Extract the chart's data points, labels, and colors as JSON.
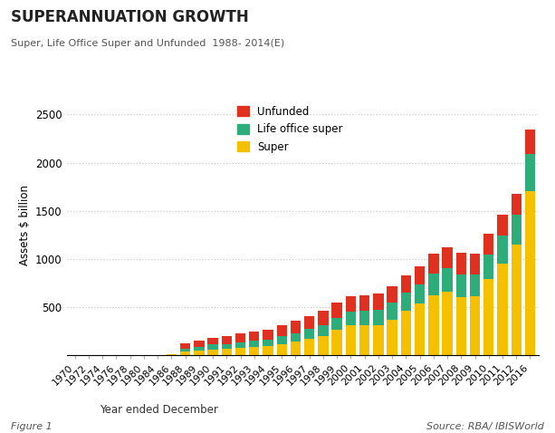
{
  "title": "SUPERANNUATION GROWTH",
  "subtitle": "Super, Life Office Super and Unfunded  1988- 2014(E)",
  "xlabel": "Year ended December",
  "ylabel": "Assets $ billion",
  "figure_label": "Figure 1",
  "source_label": "Source: RBA/ IBISWorld",
  "background_color": "#ffffff",
  "grid_color": "#c8c8c8",
  "ylim": [
    0,
    2700
  ],
  "yticks": [
    0,
    500,
    1000,
    1500,
    2000,
    2500
  ],
  "colors": {
    "super": "#F5C000",
    "life_office": "#2EAD7A",
    "unfunded": "#E03020"
  },
  "years": [
    1970,
    1972,
    1974,
    1976,
    1978,
    1980,
    1984,
    1986,
    1988,
    1989,
    1990,
    1991,
    1992,
    1993,
    1994,
    1995,
    1996,
    1997,
    1998,
    1999,
    2000,
    2001,
    2002,
    2003,
    2004,
    2005,
    2006,
    2007,
    2008,
    2009,
    2010,
    2011,
    2012,
    2016
  ],
  "super_values": [
    3,
    3,
    3,
    3,
    3,
    3,
    3,
    5,
    35,
    50,
    60,
    65,
    75,
    85,
    90,
    115,
    140,
    170,
    200,
    260,
    310,
    310,
    310,
    370,
    460,
    540,
    620,
    660,
    600,
    610,
    790,
    950,
    1150,
    1700
  ],
  "life_office_values": [
    0,
    0,
    0,
    0,
    0,
    0,
    0,
    0,
    30,
    38,
    48,
    52,
    58,
    62,
    68,
    78,
    90,
    100,
    115,
    130,
    140,
    150,
    158,
    172,
    188,
    198,
    228,
    248,
    238,
    228,
    258,
    288,
    308,
    388
  ],
  "unfunded_values": [
    0,
    0,
    0,
    0,
    0,
    0,
    0,
    0,
    55,
    65,
    75,
    85,
    95,
    100,
    105,
    115,
    125,
    135,
    145,
    155,
    165,
    162,
    168,
    172,
    178,
    182,
    202,
    212,
    222,
    212,
    212,
    218,
    222,
    252
  ]
}
